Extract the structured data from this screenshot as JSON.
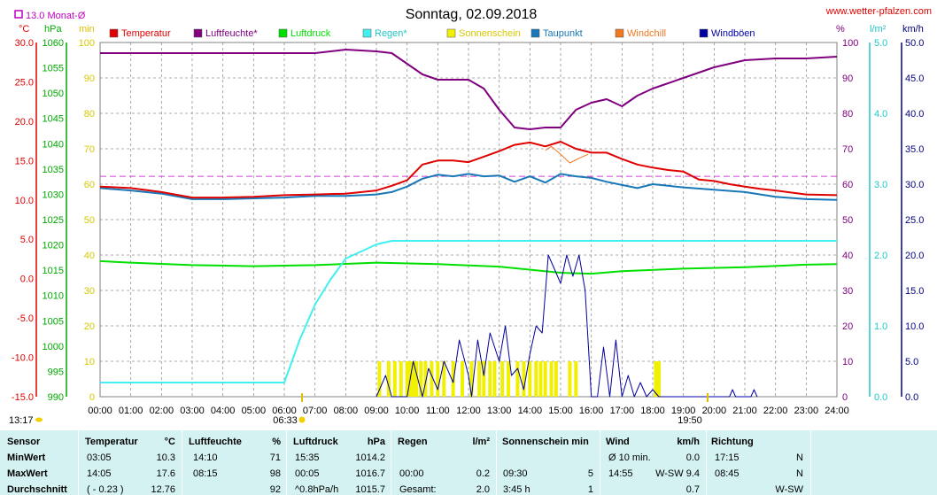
{
  "header": {
    "title": "Sonntag, 02.09.2018",
    "website": "www.wetter-pfalzen.com",
    "monthly_avg": "13.0 Monat-Ø"
  },
  "units": {
    "celsius": "°C",
    "hpa": "hPa",
    "min": "min",
    "percent": "%",
    "lm2": "l/m²",
    "kmh": "km/h"
  },
  "legend": [
    {
      "label": "Temperatur",
      "color": "#e00000"
    },
    {
      "label": "Luftfeuchte*",
      "color": "#800080"
    },
    {
      "label": "Luftdruck",
      "color": "#00e000"
    },
    {
      "label": "Regen*",
      "color": "#40f0f0"
    },
    {
      "label": "Sonnenschein",
      "color": "#f0f000"
    },
    {
      "label": "Taupunkt",
      "color": "#1878b8"
    },
    {
      "label": "Windchill",
      "color": "#f07820"
    },
    {
      "label": "Windböen",
      "color": "#0000a0"
    }
  ],
  "axes": {
    "temp_ticks": [
      "30.0",
      "25.0",
      "20.0",
      "15.0",
      "10.0",
      "5.0",
      "0.0",
      "-5.0",
      "-10.0",
      "-15.0"
    ],
    "hpa_ticks": [
      "1060",
      "1055",
      "1050",
      "1045",
      "1040",
      "1035",
      "1030",
      "1025",
      "1020",
      "1015",
      "1010",
      "1005",
      "1000",
      "995",
      "990"
    ],
    "min_ticks": [
      "100",
      "90",
      "80",
      "70",
      "60",
      "50",
      "40",
      "30",
      "20",
      "10",
      "0"
    ],
    "pct_ticks": [
      "100",
      "90",
      "80",
      "70",
      "60",
      "50",
      "40",
      "30",
      "20",
      "10",
      "0"
    ],
    "rain_ticks": [
      "5.0",
      "4.0",
      "3.0",
      "2.0",
      "1.0",
      "0.0"
    ],
    "wind_ticks": [
      "50.0",
      "45.0",
      "40.0",
      "35.0",
      "30.0",
      "25.0",
      "20.0",
      "15.0",
      "10.0",
      "5.0",
      "0.0"
    ],
    "time_ticks": [
      "00:00",
      "01:00",
      "02:00",
      "03:00",
      "04:00",
      "05:00",
      "06:00",
      "07:00",
      "08:00",
      "09:00",
      "10:00",
      "11:00",
      "12:00",
      "13:00",
      "14:00",
      "15:00",
      "16:00",
      "17:00",
      "18:00",
      "19:00",
      "20:00",
      "21:00",
      "22:00",
      "23:00",
      "24:00"
    ],
    "sunrise": "06:33",
    "sunset": "19:50",
    "left_corner_time": "13:17"
  },
  "chart_data": {
    "type": "line",
    "title": "Sonntag, 02.09.2018",
    "x_unit": "hours",
    "xlim": [
      0,
      24
    ],
    "monthly_avg_temp": 13.0,
    "series": [
      {
        "name": "Temperatur",
        "unit": "°C",
        "ylim": [
          -15,
          30
        ],
        "color": "#e00000",
        "points": [
          [
            0,
            11.7
          ],
          [
            1,
            11.5
          ],
          [
            2,
            11.0
          ],
          [
            3,
            10.3
          ],
          [
            4,
            10.3
          ],
          [
            5,
            10.4
          ],
          [
            6,
            10.6
          ],
          [
            7,
            10.7
          ],
          [
            8,
            10.8
          ],
          [
            9,
            11.2
          ],
          [
            9.5,
            11.8
          ],
          [
            10,
            12.5
          ],
          [
            10.5,
            14.5
          ],
          [
            11,
            15.0
          ],
          [
            11.5,
            15.0
          ],
          [
            12,
            14.8
          ],
          [
            12.5,
            15.5
          ],
          [
            13,
            16.2
          ],
          [
            13.5,
            17.0
          ],
          [
            14,
            17.3
          ],
          [
            14.5,
            16.8
          ],
          [
            15,
            17.4
          ],
          [
            15.5,
            16.5
          ],
          [
            16,
            16.0
          ],
          [
            16.5,
            16.0
          ],
          [
            17,
            15.2
          ],
          [
            17.5,
            14.5
          ],
          [
            18,
            14.1
          ],
          [
            18.5,
            13.8
          ],
          [
            19,
            13.6
          ],
          [
            19.5,
            12.6
          ],
          [
            20,
            12.4
          ],
          [
            20.5,
            12.0
          ],
          [
            21,
            11.7
          ],
          [
            21.5,
            11.4
          ],
          [
            22,
            11.2
          ],
          [
            23,
            10.7
          ],
          [
            24,
            10.6
          ]
        ]
      },
      {
        "name": "Luftfeuchte*",
        "unit": "%",
        "ylim": [
          0,
          100
        ],
        "color": "#800080",
        "points": [
          [
            0,
            97
          ],
          [
            1,
            97
          ],
          [
            3,
            97
          ],
          [
            5,
            97
          ],
          [
            7,
            97
          ],
          [
            8,
            98
          ],
          [
            9,
            97.5
          ],
          [
            9.5,
            97
          ],
          [
            10,
            94
          ],
          [
            10.5,
            91
          ],
          [
            11,
            89.5
          ],
          [
            12,
            89.5
          ],
          [
            12.5,
            87
          ],
          [
            13,
            81
          ],
          [
            13.5,
            76
          ],
          [
            14,
            75.5
          ],
          [
            14.5,
            76
          ],
          [
            15,
            76
          ],
          [
            15.5,
            81
          ],
          [
            16,
            83
          ],
          [
            16.5,
            84
          ],
          [
            17,
            82
          ],
          [
            17.5,
            85
          ],
          [
            18,
            87
          ],
          [
            19,
            90
          ],
          [
            20,
            93
          ],
          [
            21,
            95
          ],
          [
            22,
            95.5
          ],
          [
            23,
            95.5
          ],
          [
            24,
            96
          ]
        ]
      },
      {
        "name": "Luftdruck",
        "unit": "hPa",
        "ylim": [
          990,
          1060
        ],
        "color": "#00e000",
        "points": [
          [
            0,
            1016.8
          ],
          [
            1,
            1016.5
          ],
          [
            3,
            1016.0
          ],
          [
            5,
            1015.8
          ],
          [
            7,
            1016.0
          ],
          [
            9,
            1016.5
          ],
          [
            11,
            1016.2
          ],
          [
            13,
            1015.7
          ],
          [
            15,
            1014.5
          ],
          [
            16,
            1014.3
          ],
          [
            17,
            1014.8
          ],
          [
            19,
            1015.3
          ],
          [
            21,
            1015.6
          ],
          [
            23,
            1016.1
          ],
          [
            24,
            1016.2
          ]
        ]
      },
      {
        "name": "Regen*",
        "unit": "l/m²",
        "ylim": [
          0,
          5
        ],
        "color": "#40f0f0",
        "points": [
          [
            0,
            0.2
          ],
          [
            6,
            0.2
          ],
          [
            6.5,
            0.8
          ],
          [
            7,
            1.3
          ],
          [
            7.5,
            1.65
          ],
          [
            8,
            1.95
          ],
          [
            8.5,
            2.05
          ],
          [
            9,
            2.15
          ],
          [
            9.5,
            2.2
          ],
          [
            10,
            2.2
          ],
          [
            24,
            2.2
          ]
        ]
      },
      {
        "name": "Taupunkt",
        "unit": "°C",
        "ylim": [
          -15,
          30
        ],
        "color": "#1878b8",
        "points": [
          [
            0,
            11.5
          ],
          [
            1,
            11.2
          ],
          [
            2,
            10.8
          ],
          [
            3,
            10.1
          ],
          [
            4,
            10.1
          ],
          [
            5,
            10.2
          ],
          [
            6,
            10.3
          ],
          [
            7,
            10.5
          ],
          [
            8,
            10.5
          ],
          [
            9,
            10.7
          ],
          [
            9.5,
            11.0
          ],
          [
            10,
            11.7
          ],
          [
            10.5,
            12.7
          ],
          [
            11,
            13.2
          ],
          [
            11.5,
            13.0
          ],
          [
            12,
            13.3
          ],
          [
            12.5,
            13.0
          ],
          [
            13,
            13.1
          ],
          [
            13.5,
            12.3
          ],
          [
            14,
            13.0
          ],
          [
            14.5,
            12.2
          ],
          [
            15,
            13.3
          ],
          [
            15.5,
            13.0
          ],
          [
            16,
            12.8
          ],
          [
            16.5,
            12.3
          ],
          [
            17,
            11.9
          ],
          [
            17.5,
            11.5
          ],
          [
            18,
            12.0
          ],
          [
            18.5,
            11.8
          ],
          [
            19,
            11.6
          ],
          [
            20,
            11.3
          ],
          [
            21,
            11.0
          ],
          [
            22,
            10.4
          ],
          [
            23,
            10.1
          ],
          [
            24,
            10.0
          ]
        ]
      },
      {
        "name": "Windchill",
        "unit": "°C",
        "ylim": [
          -15,
          30
        ],
        "color": "#f07820",
        "points": [
          [
            14.5,
            16.3
          ],
          [
            14.7,
            16.8
          ],
          [
            15,
            15.8
          ],
          [
            15.3,
            14.7
          ],
          [
            15.6,
            15.3
          ],
          [
            15.9,
            15.8
          ]
        ]
      },
      {
        "name": "Windböen",
        "unit": "km/h",
        "ylim": [
          0,
          50
        ],
        "color": "#0000a0",
        "points": [
          [
            9,
            0
          ],
          [
            9.3,
            3
          ],
          [
            9.5,
            0
          ],
          [
            10,
            0
          ],
          [
            10.2,
            5
          ],
          [
            10.5,
            0
          ],
          [
            10.7,
            4
          ],
          [
            11,
            1
          ],
          [
            11.2,
            5
          ],
          [
            11.5,
            2
          ],
          [
            11.7,
            8
          ],
          [
            12,
            3
          ],
          [
            12.1,
            0
          ],
          [
            12.3,
            8
          ],
          [
            12.5,
            3
          ],
          [
            12.7,
            9
          ],
          [
            13,
            5
          ],
          [
            13.2,
            10
          ],
          [
            13.4,
            3
          ],
          [
            13.6,
            4
          ],
          [
            13.8,
            1
          ],
          [
            14,
            6
          ],
          [
            14.2,
            10
          ],
          [
            14.4,
            9
          ],
          [
            14.6,
            20
          ],
          [
            14.8,
            18
          ],
          [
            15,
            16
          ],
          [
            15.2,
            20
          ],
          [
            15.4,
            17
          ],
          [
            15.6,
            20
          ],
          [
            15.8,
            15
          ],
          [
            16,
            0
          ],
          [
            16.2,
            0
          ],
          [
            16.4,
            7
          ],
          [
            16.6,
            0
          ],
          [
            16.8,
            8
          ],
          [
            17,
            0
          ],
          [
            17.2,
            3
          ],
          [
            17.4,
            0
          ],
          [
            17.6,
            2
          ],
          [
            17.8,
            0
          ],
          [
            18,
            1
          ],
          [
            18.2,
            0
          ],
          [
            20.5,
            0
          ],
          [
            20.6,
            1
          ],
          [
            20.7,
            0
          ],
          [
            21.2,
            0
          ],
          [
            21.3,
            1
          ],
          [
            21.4,
            0
          ]
        ]
      }
    ],
    "sunshine_minutes_per_interval": [
      [
        9.1,
        1
      ],
      [
        9.4,
        1
      ],
      [
        9.6,
        1
      ],
      [
        9.8,
        1
      ],
      [
        10.0,
        1
      ],
      [
        10.1,
        1
      ],
      [
        10.2,
        1
      ],
      [
        10.3,
        1
      ],
      [
        10.45,
        1
      ],
      [
        10.6,
        1
      ],
      [
        10.8,
        1
      ],
      [
        11.0,
        1
      ],
      [
        11.2,
        1
      ],
      [
        11.5,
        1
      ],
      [
        11.8,
        1
      ],
      [
        12.1,
        1
      ],
      [
        12.35,
        1
      ],
      [
        12.5,
        1
      ],
      [
        12.7,
        1
      ],
      [
        12.85,
        1
      ],
      [
        13.1,
        1
      ],
      [
        13.3,
        1
      ],
      [
        13.6,
        1
      ],
      [
        13.8,
        1
      ],
      [
        14.0,
        1
      ],
      [
        14.2,
        1
      ],
      [
        14.35,
        1
      ],
      [
        14.5,
        1
      ],
      [
        14.7,
        1
      ],
      [
        14.85,
        1
      ],
      [
        15.3,
        1
      ],
      [
        15.5,
        1
      ],
      [
        18.1,
        1
      ],
      [
        18.2,
        1
      ]
    ]
  },
  "stats": {
    "headers": {
      "sensor": "Sensor",
      "temp": "Temperatur",
      "temp_unit": "°C",
      "hum": "Luftfeuchte",
      "hum_unit": "%",
      "press": "Luftdruck",
      "press_unit": "hPa",
      "rain": "Regen",
      "rain_unit": "l/m²",
      "sun": "Sonnenschein min",
      "wind": "Wind",
      "wind_unit": "km/h",
      "dir": "Richtung"
    },
    "rows": [
      {
        "label": "MinWert",
        "temp_time": "03:05",
        "temp_val": "10.3",
        "hum_time": "14:10",
        "hum_val": "71",
        "press_time": "15:35",
        "press_val": "1014.2",
        "rain_time": "",
        "rain_val": "",
        "sun_time": "",
        "sun_val": "",
        "wind_time": "Ø 10 min.",
        "wind_val": "0.0",
        "dir_time": "17:15",
        "dir_val": "N"
      },
      {
        "label": "MaxWert",
        "temp_time": "14:05",
        "temp_val": "17.6",
        "hum_time": "08:15",
        "hum_val": "98",
        "press_time": "00:05",
        "press_val": "1016.7",
        "rain_time": "00:00",
        "rain_val": "0.2",
        "sun_time": "09:30",
        "sun_val": "5",
        "wind_time": "14:55",
        "wind_val": "W-SW 9.4",
        "dir_time": "08:45",
        "dir_val": "N"
      },
      {
        "label": "Durchschnitt",
        "temp_time": "( - 0.23 )",
        "temp_val": "12.76",
        "hum_time": "",
        "hum_val": "92",
        "press_time": "^0.8hPa/h",
        "press_val": "1015.7",
        "rain_time": "Gesamt:",
        "rain_val": "2.0",
        "sun_time": "3:45 h",
        "sun_val": "1",
        "wind_time": "",
        "wind_val": "0.7",
        "dir_time": "",
        "dir_val": "W-SW"
      }
    ]
  }
}
